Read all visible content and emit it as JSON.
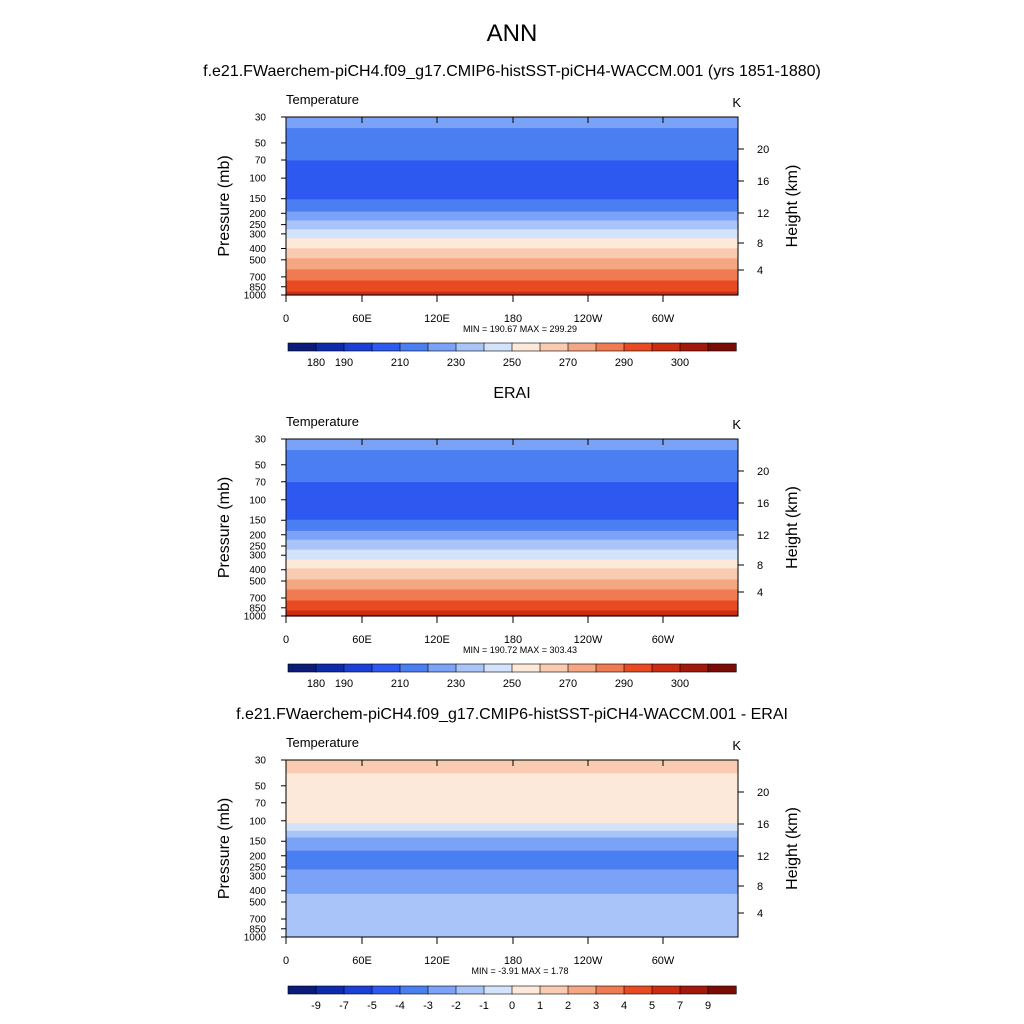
{
  "figure": {
    "title": "ANN"
  },
  "y_axis": {
    "left_label": "Pressure (mb)",
    "left_ticks": [
      "30",
      "50",
      "70",
      "100",
      "150",
      "200",
      "250",
      "300",
      "400",
      "500",
      "700",
      "850",
      "1000"
    ],
    "right_label": "Height (km)",
    "right_ticks": [
      "20",
      "16",
      "12",
      "8",
      "4"
    ]
  },
  "x_axis": {
    "ticks": [
      "0",
      "60E",
      "120E",
      "180",
      "120W",
      "60W"
    ]
  },
  "panels": [
    {
      "title": "f.e21.FWaerchem-piCH4.f09_g17.CMIP6-histSST-piCH4-WACCM.001 (yrs 1851-1880)",
      "variable": "Temperature",
      "units": "K",
      "stats": "MIN = 190.67  MAX = 299.29",
      "colorbar_labels": [
        "180",
        "190",
        "210",
        "230",
        "250",
        "270",
        "290",
        "300"
      ]
    },
    {
      "title": "ERAI",
      "variable": "Temperature",
      "units": "K",
      "stats": "MIN = 190.72  MAX = 303.43",
      "colorbar_labels": [
        "180",
        "190",
        "210",
        "230",
        "250",
        "270",
        "290",
        "300"
      ]
    },
    {
      "title": "f.e21.FWaerchem-piCH4.f09_g17.CMIP6-histSST-piCH4-WACCM.001 - ERAI",
      "variable": "Temperature",
      "units": "K",
      "stats": "MIN =  -3.91  MAX =   1.78",
      "colorbar_labels": [
        "-9",
        "-7",
        "-5",
        "-4",
        "-3",
        "-2",
        "-1",
        "0",
        "1",
        "2",
        "3",
        "4",
        "5",
        "7",
        "9"
      ]
    }
  ],
  "chart_data": [
    {
      "type": "heatmap",
      "title": "f.e21.FWaerchem-piCH4.f09_g17.CMIP6-histSST-piCH4-WACCM.001 (yrs 1851-1880)",
      "variable": "Temperature",
      "units": "K",
      "xlabel": "",
      "ylabel": "Pressure (mb)",
      "y2label": "Height (km)",
      "x_ticks": [
        "0",
        "60E",
        "120E",
        "180",
        "120W",
        "60W"
      ],
      "y_ticks": [
        30,
        50,
        70,
        100,
        150,
        200,
        250,
        300,
        400,
        500,
        700,
        850,
        1000
      ],
      "y_scale": "log",
      "ylim": [
        1000,
        30
      ],
      "colorbar_levels": [
        180,
        185,
        190,
        200,
        210,
        220,
        230,
        240,
        250,
        260,
        270,
        280,
        290,
        295,
        300
      ],
      "colorbar_labels": [
        "180",
        "190",
        "210",
        "230",
        "250",
        "270",
        "290",
        "300"
      ],
      "colors": [
        "#0c1a7a",
        "#0d2bac",
        "#1c3fd6",
        "#2e59f0",
        "#4a7ff2",
        "#7ba2f6",
        "#a9c4f8",
        "#d3e3fb",
        "#fde9da",
        "#f9cbb0",
        "#f5a683",
        "#f07a52",
        "#e84a22",
        "#cc2c10",
        "#a3180a",
        "#7a0c05"
      ],
      "profile": [
        {
          "p": 30,
          "value": 213
        },
        {
          "p": 50,
          "value": 206
        },
        {
          "p": 70,
          "value": 200
        },
        {
          "p": 100,
          "value": 195
        },
        {
          "p": 150,
          "value": 199
        },
        {
          "p": 200,
          "value": 212
        },
        {
          "p": 250,
          "value": 225
        },
        {
          "p": 300,
          "value": 235
        },
        {
          "p": 400,
          "value": 250
        },
        {
          "p": 500,
          "value": 261
        },
        {
          "p": 700,
          "value": 277
        },
        {
          "p": 850,
          "value": 285
        },
        {
          "p": 1000,
          "value": 293
        }
      ],
      "min": 190.67,
      "max": 299.29
    },
    {
      "type": "heatmap",
      "title": "ERAI",
      "variable": "Temperature",
      "units": "K",
      "xlabel": "",
      "ylabel": "Pressure (mb)",
      "y2label": "Height (km)",
      "x_ticks": [
        "0",
        "60E",
        "120E",
        "180",
        "120W",
        "60W"
      ],
      "y_ticks": [
        30,
        50,
        70,
        100,
        150,
        200,
        250,
        300,
        400,
        500,
        700,
        850,
        1000
      ],
      "y_scale": "log",
      "ylim": [
        1000,
        30
      ],
      "colorbar_levels": [
        180,
        185,
        190,
        200,
        210,
        220,
        230,
        240,
        250,
        260,
        270,
        280,
        290,
        295,
        300
      ],
      "colorbar_labels": [
        "180",
        "190",
        "210",
        "230",
        "250",
        "270",
        "290",
        "300"
      ],
      "colors": [
        "#0c1a7a",
        "#0d2bac",
        "#1c3fd6",
        "#2e59f0",
        "#4a7ff2",
        "#7ba2f6",
        "#a9c4f8",
        "#d3e3fb",
        "#fde9da",
        "#f9cbb0",
        "#f5a683",
        "#f07a52",
        "#e84a22",
        "#cc2c10",
        "#a3180a",
        "#7a0c05"
      ],
      "profile": [
        {
          "p": 30,
          "value": 213
        },
        {
          "p": 50,
          "value": 206
        },
        {
          "p": 70,
          "value": 200
        },
        {
          "p": 100,
          "value": 195
        },
        {
          "p": 150,
          "value": 200
        },
        {
          "p": 200,
          "value": 214
        },
        {
          "p": 250,
          "value": 227
        },
        {
          "p": 300,
          "value": 236
        },
        {
          "p": 400,
          "value": 251
        },
        {
          "p": 500,
          "value": 262
        },
        {
          "p": 700,
          "value": 278
        },
        {
          "p": 850,
          "value": 287
        },
        {
          "p": 1000,
          "value": 297
        }
      ],
      "min": 190.72,
      "max": 303.43
    },
    {
      "type": "heatmap",
      "title": "f.e21.FWaerchem-piCH4.f09_g17.CMIP6-histSST-piCH4-WACCM.001 - ERAI",
      "variable": "Temperature",
      "units": "K",
      "xlabel": "",
      "ylabel": "Pressure (mb)",
      "y2label": "Height (km)",
      "x_ticks": [
        "0",
        "60E",
        "120E",
        "180",
        "120W",
        "60W"
      ],
      "y_ticks": [
        30,
        50,
        70,
        100,
        150,
        200,
        250,
        300,
        400,
        500,
        700,
        850,
        1000
      ],
      "y_scale": "log",
      "ylim": [
        1000,
        30
      ],
      "colorbar_levels": [
        -9,
        -7,
        -5,
        -4,
        -3,
        -2,
        -1,
        0,
        1,
        2,
        3,
        4,
        5,
        7,
        9
      ],
      "colorbar_labels": [
        "-9",
        "-7",
        "-5",
        "-4",
        "-3",
        "-2",
        "-1",
        "0",
        "1",
        "2",
        "3",
        "4",
        "5",
        "7",
        "9"
      ],
      "colors": [
        "#0c1a7a",
        "#0d2bac",
        "#1c3fd6",
        "#2e59f0",
        "#4a7ff2",
        "#7ba2f6",
        "#a9c4f8",
        "#d3e3fb",
        "#fde9da",
        "#f9cbb0",
        "#f5a683",
        "#f07a52",
        "#e84a22",
        "#cc2c10",
        "#a3180a",
        "#7a0c05"
      ],
      "profile": [
        {
          "p": 30,
          "value": 1.5
        },
        {
          "p": 50,
          "value": 0.5
        },
        {
          "p": 70,
          "value": 0.5
        },
        {
          "p": 100,
          "value": 0.3
        },
        {
          "p": 150,
          "value": -2.5
        },
        {
          "p": 200,
          "value": -3.3
        },
        {
          "p": 250,
          "value": -3.2
        },
        {
          "p": 300,
          "value": -2.5
        },
        {
          "p": 400,
          "value": -2.2
        },
        {
          "p": 500,
          "value": -1.5
        },
        {
          "p": 700,
          "value": -1.5
        },
        {
          "p": 850,
          "value": -1.5
        },
        {
          "p": 1000,
          "value": -1.5
        }
      ],
      "min": -3.91,
      "max": 1.78
    }
  ]
}
